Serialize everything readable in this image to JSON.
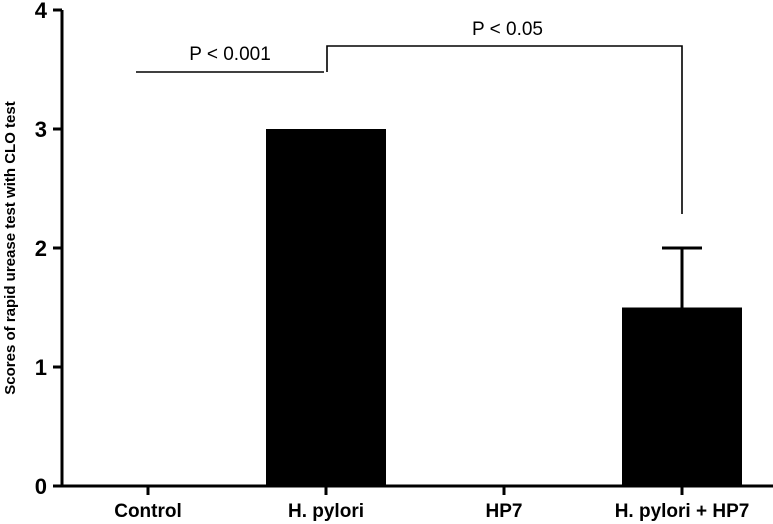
{
  "chart_data": {
    "type": "bar",
    "categories": [
      "Control",
      "H. pylori",
      "HP7",
      "H. pylori + HP7"
    ],
    "values": [
      0,
      3,
      0,
      1.5
    ],
    "error_upper": [
      0,
      0,
      0,
      2
    ],
    "title": "",
    "xlabel": "",
    "ylabel": "Scores of rapid urease test with CLO test",
    "ylim": [
      0,
      4
    ],
    "yticks": [
      "0",
      "1",
      "2",
      "3",
      "4"
    ],
    "grid": false,
    "annotations": [
      {
        "text": "P < 0.001",
        "from": 0,
        "to": 1
      },
      {
        "text": "P < 0.05",
        "from": 1,
        "to": 3
      }
    ]
  }
}
